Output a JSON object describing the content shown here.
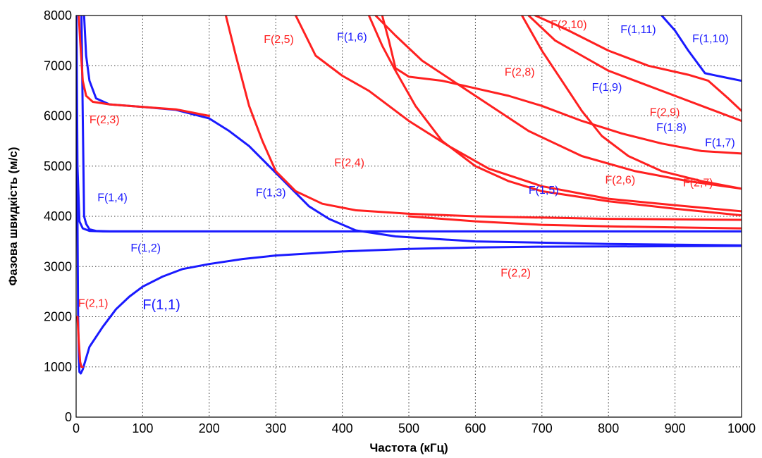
{
  "chart_data": {
    "type": "line",
    "title": "",
    "xlabel": "Частота (кГц)",
    "ylabel": "Фазова швидкість (м/с)",
    "xlim": [
      0,
      1000
    ],
    "ylim": [
      0,
      8000
    ],
    "xticks": [
      "0",
      "100",
      "200",
      "300",
      "400",
      "500",
      "600",
      "700",
      "800",
      "900",
      "1000"
    ],
    "yticks": [
      "0",
      "1000",
      "2000",
      "3000",
      "4000",
      "5000",
      "6000",
      "7000",
      "8000"
    ],
    "grid": true,
    "colors": {
      "family1": "#1a1aff",
      "family2": "#ff2020"
    },
    "series": [
      {
        "family": 1,
        "points": [
          [
            0.5,
            8000
          ],
          [
            1,
            6000
          ],
          [
            2,
            4000
          ],
          [
            3,
            2000
          ],
          [
            4,
            1200
          ],
          [
            5,
            900
          ],
          [
            7,
            870
          ],
          [
            10,
            950
          ],
          [
            20,
            1400
          ],
          [
            40,
            1800
          ],
          [
            60,
            2150
          ],
          [
            80,
            2400
          ],
          [
            100,
            2600
          ],
          [
            130,
            2800
          ],
          [
            160,
            2950
          ],
          [
            200,
            3050
          ],
          [
            250,
            3150
          ],
          [
            300,
            3220
          ],
          [
            400,
            3300
          ],
          [
            500,
            3350
          ],
          [
            600,
            3380
          ],
          [
            700,
            3395
          ],
          [
            800,
            3400
          ],
          [
            900,
            3405
          ],
          [
            1000,
            3410
          ]
        ]
      },
      {
        "family": 1,
        "points": [
          [
            0.5,
            8000
          ],
          [
            2,
            5000
          ],
          [
            5,
            3900
          ],
          [
            10,
            3760
          ],
          [
            20,
            3710
          ],
          [
            40,
            3700
          ],
          [
            100,
            3700
          ],
          [
            300,
            3700
          ],
          [
            600,
            3700
          ],
          [
            1000,
            3700
          ]
        ]
      },
      {
        "family": 1,
        "points": [
          [
            8,
            8000
          ],
          [
            10,
            6000
          ],
          [
            12,
            4000
          ],
          [
            15,
            3850
          ],
          [
            20,
            3740
          ],
          [
            30,
            3710
          ],
          [
            50,
            3700
          ],
          [
            100,
            3700
          ]
        ]
      },
      {
        "family": 1,
        "points": [
          [
            12,
            8000
          ],
          [
            15,
            7200
          ],
          [
            20,
            6700
          ],
          [
            30,
            6350
          ],
          [
            50,
            6230
          ],
          [
            100,
            6180
          ],
          [
            150,
            6120
          ],
          [
            200,
            5950
          ],
          [
            230,
            5700
          ],
          [
            260,
            5400
          ],
          [
            290,
            5000
          ],
          [
            320,
            4600
          ],
          [
            350,
            4200
          ],
          [
            380,
            3950
          ],
          [
            420,
            3720
          ],
          [
            480,
            3600
          ],
          [
            600,
            3500
          ],
          [
            800,
            3450
          ],
          [
            1000,
            3420
          ]
        ]
      },
      {
        "family": 1,
        "points": [
          [
            880,
            8000
          ],
          [
            900,
            7700
          ],
          [
            920,
            7300
          ],
          [
            945,
            6850
          ],
          [
            970,
            6780
          ],
          [
            1000,
            6700
          ]
        ]
      },
      {
        "family": 2,
        "points": [
          [
            2,
            2000
          ],
          [
            4,
            1500
          ],
          [
            6,
            1100
          ],
          [
            8,
            1000
          ],
          [
            10,
            1000
          ]
        ]
      },
      {
        "family": 2,
        "points": [
          [
            4,
            8000
          ],
          [
            6,
            7500
          ],
          [
            10,
            6700
          ],
          [
            15,
            6400
          ],
          [
            25,
            6280
          ],
          [
            50,
            6230
          ],
          [
            100,
            6180
          ],
          [
            150,
            6130
          ],
          [
            200,
            6000
          ]
        ]
      },
      {
        "family": 2,
        "points": [
          [
            225,
            8000
          ],
          [
            240,
            7200
          ],
          [
            260,
            6200
          ],
          [
            280,
            5500
          ],
          [
            300,
            4900
          ],
          [
            330,
            4500
          ],
          [
            370,
            4250
          ],
          [
            420,
            4120
          ],
          [
            500,
            4050
          ],
          [
            600,
            4000
          ],
          [
            800,
            3950
          ],
          [
            1000,
            3930
          ]
        ]
      },
      {
        "family": 2,
        "points": [
          [
            330,
            8000
          ],
          [
            360,
            7200
          ],
          [
            400,
            6800
          ],
          [
            440,
            6500
          ],
          [
            500,
            5900
          ],
          [
            560,
            5400
          ],
          [
            620,
            4950
          ],
          [
            700,
            4600
          ],
          [
            800,
            4350
          ],
          [
            900,
            4220
          ],
          [
            1000,
            4100
          ]
        ]
      },
      {
        "family": 2,
        "points": [
          [
            450,
            8000
          ],
          [
            480,
            7600
          ],
          [
            520,
            7100
          ],
          [
            600,
            6400
          ],
          [
            680,
            5700
          ],
          [
            760,
            5200
          ],
          [
            840,
            4900
          ],
          [
            920,
            4700
          ],
          [
            1000,
            4550
          ]
        ]
      },
      {
        "family": 2,
        "points": [
          [
            440,
            8000
          ],
          [
            460,
            7400
          ],
          [
            480,
            6900
          ],
          [
            510,
            6200
          ],
          [
            550,
            5500
          ],
          [
            600,
            5000
          ],
          [
            650,
            4700
          ],
          [
            700,
            4500
          ],
          [
            800,
            4300
          ],
          [
            900,
            4150
          ],
          [
            1000,
            4020
          ]
        ]
      },
      {
        "family": 2,
        "points": [
          [
            460,
            8000
          ],
          [
            470,
            7500
          ],
          [
            480,
            6950
          ],
          [
            500,
            6780
          ],
          [
            550,
            6700
          ],
          [
            600,
            6550
          ],
          [
            650,
            6400
          ],
          [
            700,
            6200
          ],
          [
            760,
            5900
          ],
          [
            820,
            5650
          ],
          [
            880,
            5450
          ],
          [
            940,
            5300
          ],
          [
            1000,
            5250
          ]
        ]
      },
      {
        "family": 2,
        "points": [
          [
            670,
            8000
          ],
          [
            700,
            7300
          ],
          [
            730,
            6700
          ],
          [
            760,
            6100
          ],
          [
            790,
            5600
          ],
          [
            830,
            5200
          ],
          [
            880,
            4900
          ],
          [
            940,
            4700
          ],
          [
            1000,
            4550
          ]
        ]
      },
      {
        "family": 2,
        "points": [
          [
            680,
            8000
          ],
          [
            720,
            7500
          ],
          [
            760,
            7200
          ],
          [
            800,
            6900
          ],
          [
            850,
            6650
          ],
          [
            900,
            6400
          ],
          [
            950,
            6150
          ],
          [
            1000,
            5900
          ]
        ]
      },
      {
        "family": 2,
        "points": [
          [
            690,
            8000
          ],
          [
            740,
            7700
          ],
          [
            800,
            7300
          ],
          [
            860,
            7000
          ],
          [
            920,
            6820
          ],
          [
            950,
            6700
          ],
          [
            980,
            6350
          ],
          [
            1000,
            6100
          ]
        ]
      },
      {
        "family": 2,
        "points": [
          [
            500,
            4000
          ],
          [
            600,
            3900
          ],
          [
            700,
            3830
          ],
          [
            800,
            3800
          ],
          [
            900,
            3780
          ],
          [
            1000,
            3760
          ]
        ]
      }
    ],
    "labels": [
      {
        "text": "F(1,1)",
        "x": 100,
        "y": 2150,
        "family": 1,
        "big": true
      },
      {
        "text": "F(1,2)",
        "x": 82,
        "y": 3300,
        "family": 1
      },
      {
        "text": "F(1,3)",
        "x": 270,
        "y": 4400,
        "family": 1
      },
      {
        "text": "F(1,4)",
        "x": 32,
        "y": 4300,
        "family": 1
      },
      {
        "text": "F(1,5)",
        "x": 680,
        "y": 4450,
        "family": 1
      },
      {
        "text": "F(1,6)",
        "x": 392,
        "y": 7500,
        "family": 1
      },
      {
        "text": "F(1,7)",
        "x": 945,
        "y": 5400,
        "family": 1
      },
      {
        "text": "F(1,8)",
        "x": 872,
        "y": 5700,
        "family": 1
      },
      {
        "text": "F(1,9)",
        "x": 775,
        "y": 6500,
        "family": 1
      },
      {
        "text": "F(1,10)",
        "x": 926,
        "y": 7470,
        "family": 1
      },
      {
        "text": "F(1,11)",
        "x": 818,
        "y": 7650,
        "family": 1
      },
      {
        "text": "F(2,1)",
        "x": 3,
        "y": 2200,
        "family": 2
      },
      {
        "text": "F(2,2)",
        "x": 638,
        "y": 2800,
        "family": 2
      },
      {
        "text": "F(2,3)",
        "x": 20,
        "y": 5850,
        "family": 2
      },
      {
        "text": "F(2,4)",
        "x": 388,
        "y": 5000,
        "family": 2
      },
      {
        "text": "F(2,5)",
        "x": 282,
        "y": 7450,
        "family": 2
      },
      {
        "text": "F(2,6)",
        "x": 795,
        "y": 4650,
        "family": 2
      },
      {
        "text": "F(2,7)",
        "x": 912,
        "y": 4600,
        "family": 2
      },
      {
        "text": "F(2,8)",
        "x": 644,
        "y": 6800,
        "family": 2
      },
      {
        "text": "F(2,9)",
        "x": 862,
        "y": 6000,
        "family": 2
      },
      {
        "text": "F(2,10)",
        "x": 713,
        "y": 7750,
        "family": 2
      }
    ]
  }
}
